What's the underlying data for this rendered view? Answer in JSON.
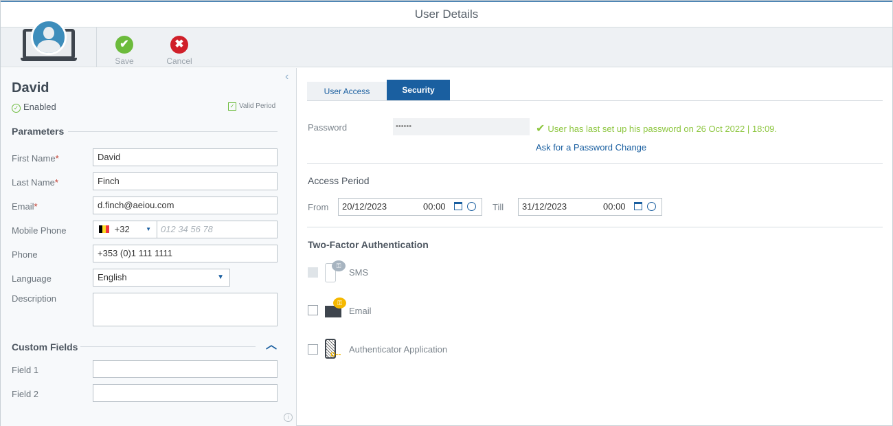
{
  "window": {
    "title": "User Details"
  },
  "toolbar": {
    "save_label": "Save",
    "cancel_label": "Cancel"
  },
  "user": {
    "name": "David",
    "status": "Enabled",
    "valid_period_label": "Valid Period"
  },
  "parameters": {
    "heading": "Parameters",
    "first_name": {
      "label": "First Name",
      "value": "David"
    },
    "last_name": {
      "label": "Last Name",
      "value": "Finch"
    },
    "email": {
      "label": "Email",
      "value": "d.finch@aeiou.com"
    },
    "mobile": {
      "label": "Mobile Phone",
      "country_code": "+32",
      "placeholder": "012 34 56 78"
    },
    "phone": {
      "label": "Phone",
      "value": "+353 (0)1 111 1111"
    },
    "language": {
      "label": "Language",
      "value": "English"
    },
    "description": {
      "label": "Description",
      "value": ""
    },
    "required_mark": "*"
  },
  "custom_fields": {
    "heading": "Custom Fields",
    "fields": [
      {
        "label": "Field 1",
        "value": ""
      },
      {
        "label": "Field 2",
        "value": ""
      }
    ]
  },
  "tabs": [
    {
      "label": "User Access",
      "active": false
    },
    {
      "label": "Security",
      "active": true
    }
  ],
  "security": {
    "password_label": "Password",
    "password_value": "••••••",
    "password_message": "User has last set up his password on 26 Oct 2022 | 18:09.",
    "password_change_link": "Ask for a Password Change",
    "access_period": {
      "heading": "Access Period",
      "from_label": "From",
      "from_date": "20/12/2023",
      "from_time": "00:00",
      "till_label": "Till",
      "till_date": "31/12/2023",
      "till_time": "00:00"
    },
    "two_factor": {
      "heading": "Two-Factor Authentication",
      "options": [
        {
          "label": "SMS",
          "checked": false,
          "disabled": true
        },
        {
          "label": "Email",
          "checked": false,
          "disabled": false
        },
        {
          "label": "Authenticator Application",
          "checked": false,
          "disabled": false
        }
      ]
    }
  },
  "colors": {
    "accent": "#1a5fa0",
    "success": "#8dc63f",
    "danger": "#d0202a",
    "key": "#f5b800"
  }
}
